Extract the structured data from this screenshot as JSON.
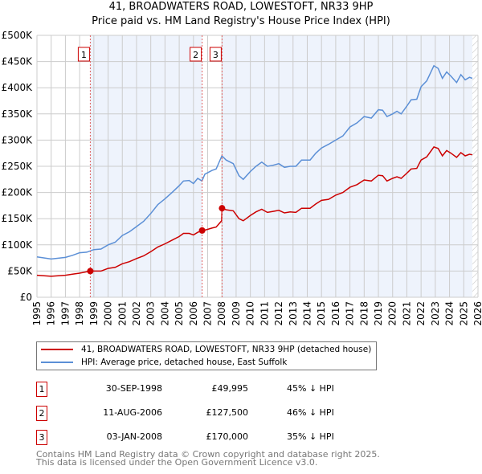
{
  "header": {
    "title": "41, BROADWATERS ROAD, LOWESTOFT, NR33 9HP",
    "subtitle": "Price paid vs. HM Land Registry's House Price Index (HPI)"
  },
  "chart_data": {
    "type": "line",
    "title": "41, BROADWATERS ROAD, LOWESTOFT, NR33 9HP — Price paid vs. HM Land Registry's House Price Index (HPI)",
    "xlim": [
      1995,
      2026
    ],
    "ylim": [
      0,
      500000
    ],
    "grid": true,
    "x_ticks": [
      "1995",
      "1996",
      "1997",
      "1998",
      "1999",
      "2000",
      "2001",
      "2002",
      "2003",
      "2004",
      "2005",
      "2006",
      "2007",
      "2008",
      "2009",
      "2010",
      "2011",
      "2012",
      "2013",
      "2014",
      "2015",
      "2016",
      "2017",
      "2018",
      "2019",
      "2020",
      "2021",
      "2022",
      "2023",
      "2024",
      "2025",
      "2026"
    ],
    "y_ticks": [
      {
        "v": 0,
        "label": "£0"
      },
      {
        "v": 50000,
        "label": "£50K"
      },
      {
        "v": 100000,
        "label": "£100K"
      },
      {
        "v": 150000,
        "label": "£150K"
      },
      {
        "v": 200000,
        "label": "£200K"
      },
      {
        "v": 250000,
        "label": "£250K"
      },
      {
        "v": 300000,
        "label": "£300K"
      },
      {
        "v": 350000,
        "label": "£350K"
      },
      {
        "v": 400000,
        "label": "£400K"
      },
      {
        "v": 450000,
        "label": "£450K"
      },
      {
        "v": 500000,
        "label": "£500K"
      }
    ],
    "shaded_ranges": [
      [
        1998.75,
        2006.61
      ],
      [
        2008.01,
        2025.6
      ]
    ],
    "forecast_hatch_from": 2025.6,
    "colors": {
      "property": "#cc0000",
      "hpi": "#5b8fd6",
      "shade": "#eef3fc",
      "grid": "#cccccc"
    },
    "series": [
      {
        "name": "HPI: Average price, detached house, East Suffolk",
        "x": [
          1995,
          1996,
          1997,
          1997.5,
          1998,
          1998.5,
          1999,
          1999.5,
          2000,
          2000.5,
          2001,
          2001.5,
          2002,
          2002.5,
          2003,
          2003.5,
          2004,
          2004.5,
          2005,
          2005.3,
          2005.7,
          2006,
          2006.3,
          2006.6,
          2006.8,
          2007.3,
          2007.6,
          2008.0,
          2008.3,
          2008.8,
          2009.2,
          2009.5,
          2010,
          2010.4,
          2010.8,
          2011.2,
          2011.6,
          2012,
          2012.4,
          2012.8,
          2013.2,
          2013.6,
          2014.2,
          2014.6,
          2015,
          2015.5,
          2016,
          2016.5,
          2017,
          2017.5,
          2018,
          2018.5,
          2019,
          2019.3,
          2019.6,
          2020,
          2020.3,
          2020.6,
          2021,
          2021.3,
          2021.7,
          2022,
          2022.4,
          2022.9,
          2023.2,
          2023.5,
          2023.8,
          2024.1,
          2024.5,
          2024.8,
          2025.1,
          2025.4,
          2025.6
        ],
        "y": [
          77,
          73,
          76,
          80,
          85,
          86,
          91,
          92,
          100,
          105,
          118,
          125,
          135,
          145,
          160,
          177,
          188,
          200,
          213,
          222,
          223,
          217,
          227,
          222,
          235,
          242,
          245,
          270,
          262,
          255,
          232,
          225,
          240,
          250,
          258,
          250,
          252,
          255,
          248,
          250,
          250,
          262,
          262,
          275,
          285,
          292,
          300,
          308,
          325,
          333,
          345,
          342,
          358,
          357,
          345,
          350,
          355,
          350,
          365,
          377,
          378,
          402,
          413,
          442,
          437,
          418,
          430,
          422,
          410,
          425,
          415,
          420,
          418
        ],
        "y_unit": "thousand GBP"
      },
      {
        "name": "41, BROADWATERS ROAD, LOWESTOFT, NR33 9HP (detached house)",
        "x": [
          1995,
          1996,
          1997,
          1997.5,
          1998,
          1998.75,
          1999.5,
          2000,
          2000.5,
          2001,
          2001.5,
          2002,
          2002.5,
          2003,
          2003.5,
          2004,
          2004.5,
          2005,
          2005.3,
          2005.7,
          2006,
          2006.3,
          2006.61,
          2006.8,
          2007.3,
          2007.6,
          2007.98,
          2008.01,
          2008.3,
          2008.8,
          2009.2,
          2009.5,
          2010,
          2010.4,
          2010.8,
          2011.2,
          2011.6,
          2012,
          2012.4,
          2012.8,
          2013.2,
          2013.6,
          2014.2,
          2014.6,
          2015,
          2015.5,
          2016,
          2016.5,
          2017,
          2017.5,
          2018,
          2018.5,
          2019,
          2019.3,
          2019.6,
          2020,
          2020.3,
          2020.6,
          2021,
          2021.3,
          2021.7,
          2022,
          2022.4,
          2022.9,
          2023.2,
          2023.5,
          2023.8,
          2024.1,
          2024.5,
          2024.8,
          2025.1,
          2025.4,
          2025.6
        ],
        "y": [
          42,
          40,
          42,
          44,
          46,
          50,
          50,
          55,
          57,
          64,
          68,
          74,
          79,
          87,
          96,
          102,
          109,
          116,
          122,
          122,
          119,
          124,
          127.5,
          128,
          132,
          134,
          146,
          170,
          167,
          165,
          150,
          146,
          156,
          163,
          168,
          162,
          164,
          166,
          161,
          163,
          162,
          170,
          170,
          178,
          185,
          187,
          195,
          200,
          210,
          215,
          224,
          222,
          233,
          232,
          222,
          227,
          230,
          227,
          237,
          245,
          246,
          262,
          268,
          287,
          284,
          270,
          280,
          275,
          267,
          276,
          270,
          273,
          272
        ],
        "y_unit": "thousand GBP"
      }
    ],
    "sales": [
      {
        "id": "1",
        "x": 1998.75,
        "y": 49995
      },
      {
        "id": "2",
        "x": 2006.61,
        "y": 127500
      },
      {
        "id": "3",
        "x": 2008.01,
        "y": 170000
      }
    ]
  },
  "legend": {
    "property_label": "41, BROADWATERS ROAD, LOWESTOFT, NR33 9HP (detached house)",
    "hpi_label": "HPI: Average price, detached house, East Suffolk"
  },
  "transactions": [
    {
      "id": "1",
      "date": "30-SEP-1998",
      "price": "£49,995",
      "hpi": "45% ↓ HPI"
    },
    {
      "id": "2",
      "date": "11-AUG-2006",
      "price": "£127,500",
      "hpi": "46% ↓ HPI"
    },
    {
      "id": "3",
      "date": "03-JAN-2008",
      "price": "£170,000",
      "hpi": "35% ↓ HPI"
    }
  ],
  "footer": {
    "line1": "Contains HM Land Registry data © Crown copyright and database right 2025.",
    "line2": "This data is licensed under the Open Government Licence v3.0."
  }
}
